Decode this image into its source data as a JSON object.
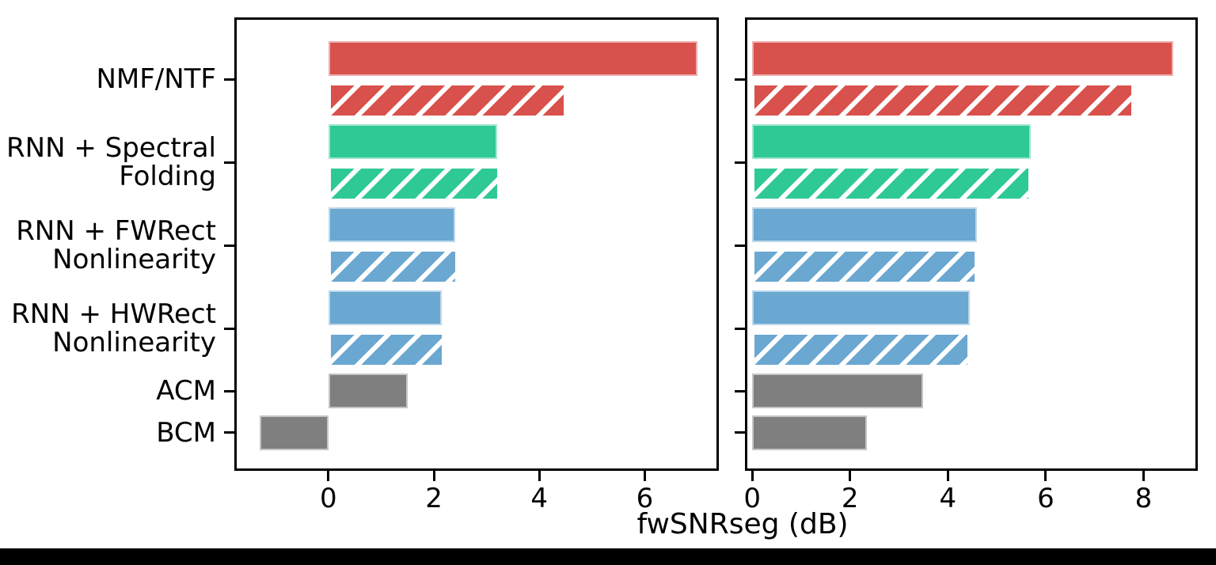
{
  "figure": {
    "xlabel": "fwSNRseg (dB)",
    "background": "#ffffff",
    "spine_color": "#000000",
    "hatch_color": "#ffffff",
    "bottom_strip_color": "#000000"
  },
  "chart_data": [
    {
      "id": "left",
      "type": "bar",
      "orientation": "horizontal",
      "title": "",
      "ylabel": "",
      "categories": [
        "NMF/NTF",
        "RNN + Spectral Folding",
        "RNN + FWRect Nonlinearity",
        "RNN + HWRect Nonlinearity",
        "ACM",
        "BCM"
      ],
      "category_display_lines": [
        [
          "NMF/NTF"
        ],
        [
          "RNN + Spectral",
          "Folding"
        ],
        [
          "RNN + FWRect",
          "Nonlinearity"
        ],
        [
          "RNN + HWRect",
          "Nonlinearity"
        ],
        [
          "ACM"
        ],
        [
          "BCM"
        ]
      ],
      "series": [
        {
          "name": "solid",
          "style": "solid",
          "values": [
            7.0,
            3.2,
            2.4,
            2.15,
            1.5,
            -1.3
          ]
        },
        {
          "name": "hatched",
          "style": "hatched",
          "values": [
            4.5,
            3.25,
            2.45,
            2.2,
            null,
            null
          ]
        }
      ],
      "bar_colors": [
        "#d9514c",
        "#2fc996",
        "#6aa7d1",
        "#6aa7d1",
        "#7f7f7f",
        "#7f7f7f"
      ],
      "xlim": [
        -1.74,
        7.36
      ],
      "xticks": [
        0,
        2,
        4,
        6
      ],
      "grid": false,
      "legend": null,
      "show_category_labels": true
    },
    {
      "id": "right",
      "type": "bar",
      "orientation": "horizontal",
      "title": "",
      "ylabel": "",
      "categories": [
        "NMF/NTF",
        "RNN + Spectral Folding",
        "RNN + FWRect Nonlinearity",
        "RNN + HWRect Nonlinearity",
        "ACM",
        "BCM"
      ],
      "category_display_lines": [
        [
          "NMF/NTF"
        ],
        [
          "RNN + Spectral",
          "Folding"
        ],
        [
          "RNN + FWRect",
          "Nonlinearity"
        ],
        [
          "RNN + HWRect",
          "Nonlinearity"
        ],
        [
          "ACM"
        ],
        [
          "BCM"
        ]
      ],
      "series": [
        {
          "name": "solid",
          "style": "solid",
          "values": [
            8.6,
            5.7,
            4.6,
            4.45,
            3.5,
            2.35
          ]
        },
        {
          "name": "hatched",
          "style": "hatched",
          "values": [
            7.8,
            5.7,
            4.6,
            4.45,
            null,
            null
          ]
        }
      ],
      "bar_colors": [
        "#d9514c",
        "#2fc996",
        "#6aa7d1",
        "#6aa7d1",
        "#7f7f7f",
        "#7f7f7f"
      ],
      "xlim": [
        -0.1,
        9.06
      ],
      "xticks": [
        0,
        2,
        4,
        6,
        8
      ],
      "grid": false,
      "legend": null,
      "show_category_labels": false
    }
  ]
}
